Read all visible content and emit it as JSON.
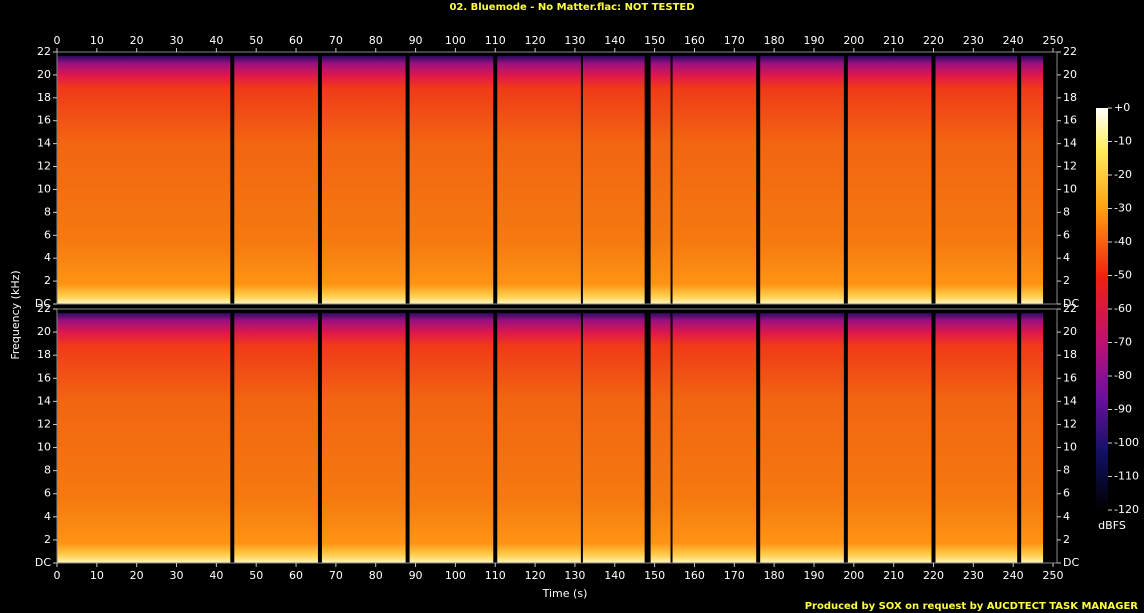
{
  "chart_data": {
    "type": "spectrogram",
    "title": "02. Bluemode - No Matter.flac: NOT TESTED",
    "xlabel": "Time (s)",
    "ylabel": "Frequency (kHz)",
    "colorbar_label": "dBFS",
    "footer": "Produced by SOX on request by AUCDTECT TASK MANAGER",
    "xlim": [
      0,
      251
    ],
    "xticks": [
      0,
      10,
      20,
      30,
      40,
      50,
      60,
      70,
      80,
      90,
      100,
      110,
      120,
      130,
      140,
      150,
      160,
      170,
      180,
      190,
      200,
      210,
      220,
      230,
      240,
      250
    ],
    "ylim": [
      0,
      22
    ],
    "yticks": [
      {
        "value": 0,
        "label": "DC"
      },
      2,
      4,
      6,
      8,
      10,
      12,
      14,
      16,
      18,
      20,
      22
    ],
    "colorbar_lim": [
      -120,
      0
    ],
    "colorbar_ticks": [
      {
        "value": 0,
        "label": "+0"
      },
      -10,
      -20,
      -30,
      -40,
      -50,
      -60,
      -70,
      -80,
      -90,
      -100,
      -110,
      -120
    ],
    "segments": [
      [
        0,
        43.5
      ],
      [
        44.5,
        65.5
      ],
      [
        66.5,
        87.5
      ],
      [
        88.5,
        109.5
      ],
      [
        110.5,
        131.5
      ],
      [
        132,
        147.5
      ],
      [
        149,
        154
      ],
      [
        154.5,
        175.5
      ],
      [
        176.5,
        197.5
      ],
      [
        198.5,
        219.5
      ],
      [
        220.5,
        241
      ],
      [
        242,
        247.5
      ]
    ]
  }
}
